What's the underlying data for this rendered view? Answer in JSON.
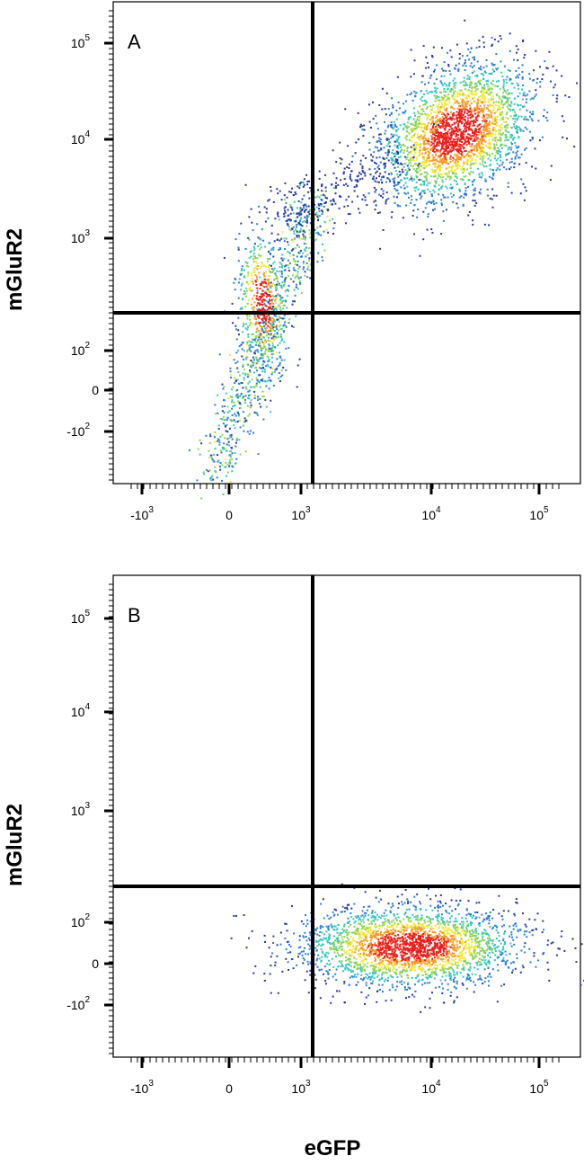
{
  "chart_data": [
    {
      "type": "scatter",
      "subtype": "flow-cytometry density dot plot",
      "panel_label": "A",
      "xlabel": "eGFP",
      "ylabel": "mGluR2",
      "x_scale": "biexponential",
      "y_scale": "biexponential",
      "x_ticks": [
        {
          "value": -1000,
          "base": "-10",
          "exp": "3"
        },
        {
          "value": 0,
          "base": "0",
          "exp": ""
        },
        {
          "value": 1000,
          "base": "10",
          "exp": "3"
        },
        {
          "value": 10000,
          "base": "10",
          "exp": "4"
        },
        {
          "value": 100000,
          "base": "10",
          "exp": "5"
        }
      ],
      "y_ticks": [
        {
          "value": -100,
          "base": "-10",
          "exp": "2"
        },
        {
          "value": 0,
          "base": "0",
          "exp": ""
        },
        {
          "value": 100,
          "base": "10",
          "exp": "2"
        },
        {
          "value": 1000,
          "base": "10",
          "exp": "3"
        },
        {
          "value": 10000,
          "base": "10",
          "exp": "4"
        },
        {
          "value": 100000,
          "base": "10",
          "exp": "5"
        }
      ],
      "quadrant_gate": {
        "x": 1150,
        "y": 200
      },
      "populations": [
        {
          "name": "eGFP+ mGluR2+ cluster",
          "center": [
            17000,
            12000
          ],
          "density": "high"
        },
        {
          "name": "eGFP- cells",
          "center": [
            150,
            300
          ],
          "density": "medium"
        }
      ]
    },
    {
      "type": "scatter",
      "subtype": "flow-cytometry density dot plot",
      "panel_label": "B",
      "xlabel": "eGFP",
      "ylabel": "mGluR2",
      "x_scale": "biexponential",
      "y_scale": "biexponential",
      "x_ticks": [
        {
          "value": -1000,
          "base": "-10",
          "exp": "3"
        },
        {
          "value": 0,
          "base": "0",
          "exp": ""
        },
        {
          "value": 1000,
          "base": "10",
          "exp": "3"
        },
        {
          "value": 10000,
          "base": "10",
          "exp": "4"
        },
        {
          "value": 100000,
          "base": "10",
          "exp": "5"
        }
      ],
      "y_ticks": [
        {
          "value": -100,
          "base": "-10",
          "exp": "2"
        },
        {
          "value": 0,
          "base": "0",
          "exp": ""
        },
        {
          "value": 100,
          "base": "10",
          "exp": "2"
        },
        {
          "value": 1000,
          "base": "10",
          "exp": "3"
        },
        {
          "value": 10000,
          "base": "10",
          "exp": "4"
        },
        {
          "value": 100000,
          "base": "10",
          "exp": "5"
        }
      ],
      "quadrant_gate": {
        "x": 1150,
        "y": 200
      },
      "populations": [
        {
          "name": "eGFP+ mGluR2- cluster",
          "center": [
            8000,
            30
          ],
          "density": "high"
        }
      ]
    }
  ],
  "x_axis_title": "eGFP",
  "colors": {
    "density_scale": [
      "#2b3a9a",
      "#2f7fd0",
      "#36c6c0",
      "#8ad35a",
      "#f2e83a",
      "#f59a2a",
      "#e8201c"
    ],
    "axes": "#000000"
  }
}
